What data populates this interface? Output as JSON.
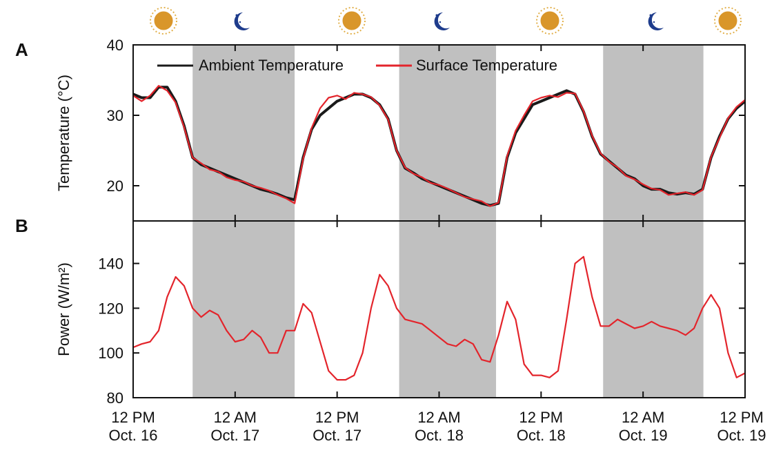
{
  "chart_data": [
    {
      "type": "line",
      "panel_label": "A",
      "ylabel": "Temperature (°C)",
      "x": [
        0,
        1,
        2,
        3,
        4,
        5,
        6,
        7,
        8,
        9,
        10,
        11,
        12,
        13,
        14,
        15,
        16,
        17,
        18,
        19,
        20,
        21,
        22,
        23,
        24,
        25,
        26,
        27,
        28,
        29,
        30,
        31,
        32,
        33,
        34,
        35,
        36,
        37,
        38,
        39,
        40,
        41,
        42,
        43,
        44,
        45,
        46,
        47,
        48,
        49,
        50,
        51,
        52,
        53,
        54,
        55,
        56,
        57,
        58,
        59,
        60,
        61,
        62,
        63,
        64,
        65,
        66,
        67,
        68,
        69,
        70,
        71,
        72
      ],
      "series": [
        {
          "name": "Ambient Temperature",
          "color": "#1a1a1a",
          "values": [
            33,
            32.5,
            32.5,
            34,
            34,
            32,
            28.5,
            24,
            23,
            22.5,
            22,
            21.5,
            21,
            20.5,
            20,
            19.5,
            19.2,
            18.8,
            18.3,
            18,
            24,
            28,
            30,
            31,
            32,
            32.5,
            33,
            33,
            32.5,
            31.5,
            29.5,
            25,
            22.5,
            21.8,
            21,
            20.5,
            20,
            19.5,
            19,
            18.5,
            18,
            17.5,
            17.2,
            17.5,
            24,
            27.5,
            29.5,
            31.5,
            32,
            32.5,
            33,
            33.5,
            33,
            30.5,
            27,
            24.5,
            23.5,
            22.5,
            21.5,
            21,
            20,
            19.5,
            19.5,
            19,
            18.8,
            19,
            18.8,
            19.5,
            24,
            27,
            29.5,
            31,
            32
          ]
        },
        {
          "name": "Surface Temperature",
          "color": "#e3242b",
          "values": [
            32.8,
            32,
            32.8,
            34.2,
            33.5,
            31.8,
            28.3,
            24,
            23.2,
            22.3,
            22,
            21.2,
            20.8,
            20.6,
            20,
            19.7,
            19.3,
            18.7,
            18.2,
            17.5,
            23.8,
            28.2,
            31,
            32.5,
            32.8,
            32.3,
            33.2,
            33,
            32.6,
            31.4,
            29.4,
            25,
            22.6,
            21.7,
            21.2,
            20.4,
            20.1,
            19.6,
            19,
            18.4,
            18.1,
            17.8,
            17.1,
            17.6,
            24.2,
            27.8,
            30,
            32,
            32.5,
            32.8,
            32.6,
            33.2,
            33.1,
            30.6,
            27.1,
            24.6,
            23.4,
            22.6,
            21.4,
            20.9,
            20.2,
            19.6,
            19.4,
            18.7,
            18.9,
            19.1,
            18.7,
            19.4,
            24.1,
            26.8,
            29.6,
            31.2,
            32.2
          ]
        }
      ],
      "shaded_regions": [
        [
          7,
          19
        ],
        [
          31.3,
          42.7
        ],
        [
          55.3,
          67.1
        ]
      ],
      "xlim": [
        0,
        72
      ],
      "ylim": [
        15,
        40
      ],
      "yticks": [
        20,
        30,
        40
      ]
    },
    {
      "type": "line",
      "panel_label": "B",
      "ylabel": "Power (W/m²)",
      "x": [
        0,
        1,
        2,
        3,
        4,
        5,
        6,
        7,
        8,
        9,
        10,
        11,
        12,
        13,
        14,
        15,
        16,
        17,
        18,
        19,
        20,
        21,
        22,
        23,
        24,
        25,
        26,
        27,
        28,
        29,
        30,
        31,
        32,
        33,
        34,
        35,
        36,
        37,
        38,
        39,
        40,
        41,
        42,
        43,
        44,
        45,
        46,
        47,
        48,
        49,
        50,
        51,
        52,
        53,
        54,
        55,
        56,
        57,
        58,
        59,
        60,
        61,
        62,
        63,
        64,
        65,
        66,
        67,
        68,
        69,
        70,
        71,
        72
      ],
      "series": [
        {
          "name": "Power",
          "color": "#e3242b",
          "values": [
            102.5,
            104,
            105,
            110,
            125,
            134,
            130,
            120,
            116,
            119,
            117,
            110,
            105,
            106,
            110,
            107,
            100,
            100,
            110,
            110,
            122,
            118,
            105,
            92,
            88,
            88,
            90,
            100,
            120,
            135,
            130,
            120,
            115,
            114,
            113,
            110,
            107,
            104,
            103,
            106,
            104,
            97,
            96,
            108,
            123,
            115,
            95,
            90,
            90,
            89,
            92,
            115,
            140,
            143,
            125,
            112,
            112,
            115,
            113,
            111,
            112,
            114,
            112,
            111,
            110,
            108,
            111,
            120,
            126,
            120,
            100,
            89,
            91
          ]
        }
      ],
      "xlim": [
        0,
        72
      ],
      "ylim": [
        80,
        159
      ],
      "yticks": [
        80,
        100,
        120,
        140
      ],
      "xticks": [
        {
          "value": 0,
          "label": "12 PM\nOct. 16"
        },
        {
          "value": 12,
          "label": "12 AM\nOct. 17"
        },
        {
          "value": 24,
          "label": "12 PM\nOct. 17"
        },
        {
          "value": 36,
          "label": "12 AM\nOct. 18"
        },
        {
          "value": 48,
          "label": "12 PM\nOct. 18"
        },
        {
          "value": 60,
          "label": "12 AM\nOct. 19"
        },
        {
          "value": 72,
          "label": "12 PM\nOct. 19"
        }
      ]
    }
  ]
}
